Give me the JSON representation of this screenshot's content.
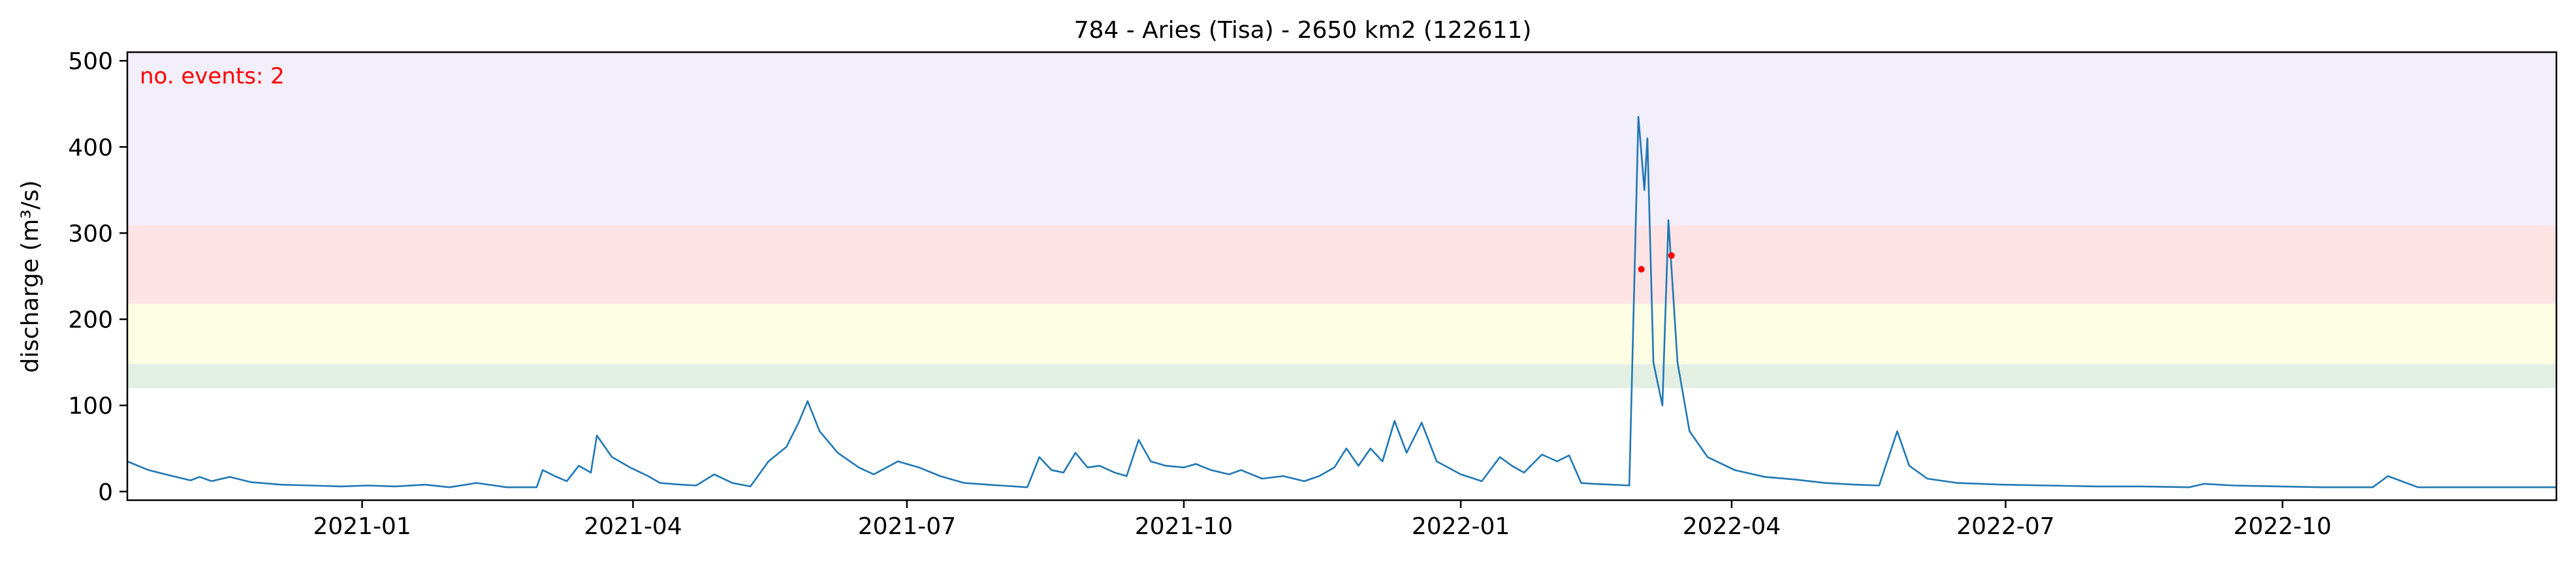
{
  "chart_data": {
    "type": "line",
    "title": "784 - Aries (Tisa) - 2650 km2 (122611)",
    "xlabel": "",
    "ylabel": "discharge (m³/s)",
    "xlim": [
      "2020-10-15",
      "2022-12-31"
    ],
    "ylim": [
      -10,
      510
    ],
    "x_ticks": [
      "2021-01",
      "2021-04",
      "2021-07",
      "2021-10",
      "2022-01",
      "2022-04",
      "2022-07",
      "2022-10"
    ],
    "x_tick_dates": [
      "2021-01-01",
      "2021-04-01",
      "2021-07-01",
      "2021-10-01",
      "2022-01-01",
      "2022-04-01",
      "2022-07-01",
      "2022-10-01"
    ],
    "y_ticks": [
      0,
      100,
      200,
      300,
      400,
      500
    ],
    "grid": false,
    "annotation": {
      "text": "no. events: 2",
      "color": "#ff0000"
    },
    "threshold_bands": [
      {
        "from": 120,
        "to": 148,
        "color": "#e3efe3"
      },
      {
        "from": 148,
        "to": 218,
        "color": "#fdfde4"
      },
      {
        "from": 218,
        "to": 309,
        "color": "#fde3e4"
      },
      {
        "from": 309,
        "to": 510,
        "color": "#f2eefa"
      }
    ],
    "series": [
      {
        "color": "#1f77b4",
        "points": [
          [
            "2020-10-15",
            35
          ],
          [
            "2020-10-22",
            25
          ],
          [
            "2020-10-30",
            18
          ],
          [
            "2020-11-05",
            13
          ],
          [
            "2020-11-08",
            17
          ],
          [
            "2020-11-12",
            12
          ],
          [
            "2020-11-18",
            17
          ],
          [
            "2020-11-25",
            11
          ],
          [
            "2020-12-05",
            8
          ],
          [
            "2020-12-15",
            7
          ],
          [
            "2020-12-25",
            6
          ],
          [
            "2021-01-03",
            7
          ],
          [
            "2021-01-12",
            6
          ],
          [
            "2021-01-22",
            8
          ],
          [
            "2021-01-30",
            5
          ],
          [
            "2021-02-08",
            10
          ],
          [
            "2021-02-18",
            5
          ],
          [
            "2021-02-28",
            5
          ],
          [
            "2021-03-02",
            25
          ],
          [
            "2021-03-06",
            18
          ],
          [
            "2021-03-10",
            12
          ],
          [
            "2021-03-14",
            30
          ],
          [
            "2021-03-18",
            22
          ],
          [
            "2021-03-20",
            65
          ],
          [
            "2021-03-25",
            40
          ],
          [
            "2021-03-31",
            28
          ],
          [
            "2021-04-06",
            18
          ],
          [
            "2021-04-10",
            10
          ],
          [
            "2021-04-17",
            8
          ],
          [
            "2021-04-22",
            7
          ],
          [
            "2021-04-28",
            20
          ],
          [
            "2021-05-04",
            10
          ],
          [
            "2021-05-10",
            6
          ],
          [
            "2021-05-16",
            35
          ],
          [
            "2021-05-22",
            52
          ],
          [
            "2021-05-26",
            80
          ],
          [
            "2021-05-29",
            105
          ],
          [
            "2021-06-02",
            70
          ],
          [
            "2021-06-08",
            45
          ],
          [
            "2021-06-15",
            28
          ],
          [
            "2021-06-20",
            20
          ],
          [
            "2021-06-28",
            35
          ],
          [
            "2021-07-05",
            28
          ],
          [
            "2021-07-12",
            18
          ],
          [
            "2021-07-20",
            10
          ],
          [
            "2021-08-01",
            7
          ],
          [
            "2021-08-10",
            5
          ],
          [
            "2021-08-14",
            40
          ],
          [
            "2021-08-18",
            25
          ],
          [
            "2021-08-22",
            22
          ],
          [
            "2021-08-26",
            45
          ],
          [
            "2021-08-30",
            28
          ],
          [
            "2021-09-03",
            30
          ],
          [
            "2021-09-08",
            22
          ],
          [
            "2021-09-12",
            18
          ],
          [
            "2021-09-16",
            60
          ],
          [
            "2021-09-20",
            35
          ],
          [
            "2021-09-25",
            30
          ],
          [
            "2021-10-01",
            28
          ],
          [
            "2021-10-05",
            32
          ],
          [
            "2021-10-10",
            25
          ],
          [
            "2021-10-16",
            20
          ],
          [
            "2021-10-20",
            25
          ],
          [
            "2021-10-27",
            15
          ],
          [
            "2021-11-03",
            18
          ],
          [
            "2021-11-10",
            12
          ],
          [
            "2021-11-15",
            18
          ],
          [
            "2021-11-20",
            28
          ],
          [
            "2021-11-24",
            50
          ],
          [
            "2021-11-28",
            30
          ],
          [
            "2021-12-02",
            50
          ],
          [
            "2021-12-06",
            35
          ],
          [
            "2021-12-10",
            82
          ],
          [
            "2021-12-14",
            45
          ],
          [
            "2021-12-19",
            80
          ],
          [
            "2021-12-24",
            35
          ],
          [
            "2022-01-01",
            20
          ],
          [
            "2022-01-08",
            12
          ],
          [
            "2022-01-14",
            40
          ],
          [
            "2022-01-18",
            30
          ],
          [
            "2022-01-22",
            22
          ],
          [
            "2022-01-28",
            43
          ],
          [
            "2022-02-02",
            35
          ],
          [
            "2022-02-06",
            42
          ],
          [
            "2022-02-10",
            10
          ],
          [
            "2022-02-14",
            9
          ],
          [
            "2022-02-20",
            8
          ],
          [
            "2022-02-26",
            7
          ],
          [
            "2022-03-01",
            435
          ],
          [
            "2022-03-03",
            350
          ],
          [
            "2022-03-04",
            410
          ],
          [
            "2022-03-06",
            150
          ],
          [
            "2022-03-09",
            100
          ],
          [
            "2022-03-11",
            315
          ],
          [
            "2022-03-14",
            150
          ],
          [
            "2022-03-18",
            70
          ],
          [
            "2022-03-24",
            40
          ],
          [
            "2022-04-02",
            25
          ],
          [
            "2022-04-12",
            17
          ],
          [
            "2022-04-22",
            14
          ],
          [
            "2022-05-02",
            10
          ],
          [
            "2022-05-12",
            8
          ],
          [
            "2022-05-20",
            7
          ],
          [
            "2022-05-26",
            70
          ],
          [
            "2022-05-30",
            30
          ],
          [
            "2022-06-05",
            15
          ],
          [
            "2022-06-15",
            10
          ],
          [
            "2022-06-30",
            8
          ],
          [
            "2022-07-15",
            7
          ],
          [
            "2022-07-31",
            6
          ],
          [
            "2022-08-15",
            6
          ],
          [
            "2022-08-31",
            5
          ],
          [
            "2022-09-05",
            9
          ],
          [
            "2022-09-15",
            7
          ],
          [
            "2022-09-30",
            6
          ],
          [
            "2022-10-15",
            5
          ],
          [
            "2022-10-31",
            5
          ],
          [
            "2022-11-05",
            18
          ],
          [
            "2022-11-15",
            5
          ],
          [
            "2022-11-30",
            5
          ],
          [
            "2022-12-10",
            5
          ],
          [
            "2022-12-20",
            5
          ],
          [
            "2022-12-31",
            5
          ]
        ]
      }
    ],
    "events": [
      {
        "x": "2022-03-02",
        "y": 258
      },
      {
        "x": "2022-03-12",
        "y": 274
      }
    ]
  }
}
